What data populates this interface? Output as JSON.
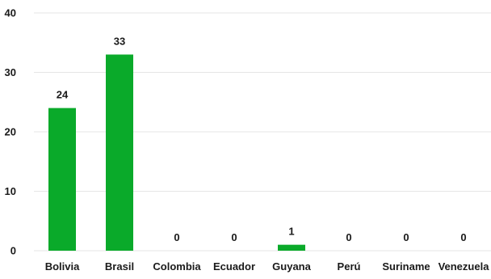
{
  "chart_data": {
    "type": "bar",
    "categories": [
      "Bolivia",
      "Brasil",
      "Colombia",
      "Ecuador",
      "Guyana",
      "Perú",
      "Suriname",
      "Venezuela"
    ],
    "values": [
      24,
      33,
      0,
      0,
      1,
      0,
      0,
      0
    ],
    "ylim": [
      0,
      40
    ],
    "yticks": [
      0,
      10,
      20,
      30,
      40
    ],
    "bar_color": "#0aaa2a",
    "grid": true,
    "legend": "none",
    "data_labels": true
  }
}
